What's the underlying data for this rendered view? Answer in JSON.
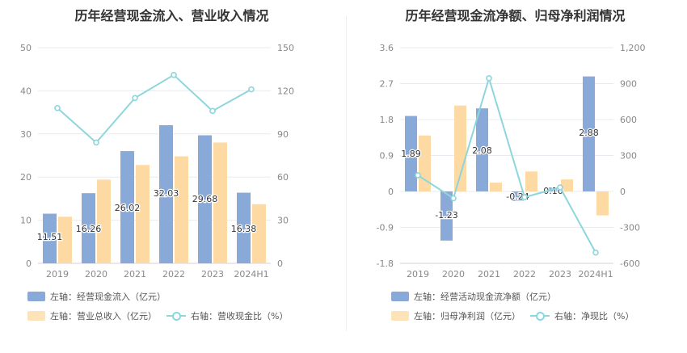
{
  "colors": {
    "blue": "#89a9d8",
    "orange": "#fdd9a3",
    "cyan": "#8dd6dc",
    "grid": "#e9ebf0",
    "axis_text": "#888888"
  },
  "chart_data": [
    {
      "type": "bar",
      "title": "历年经营现金流入、营业收入情况",
      "categories": [
        "2019",
        "2020",
        "2021",
        "2022",
        "2023",
        "2024H1"
      ],
      "left_axis": {
        "ticks": [
          "0",
          "10",
          "20",
          "30",
          "40",
          "50"
        ],
        "range": [
          0,
          50
        ]
      },
      "right_axis": {
        "ticks": [
          "0",
          "30",
          "60",
          "90",
          "120",
          "150"
        ],
        "range": [
          0,
          150
        ]
      },
      "series": [
        {
          "name": "左轴：经营现金流入（亿元）",
          "axis": "left",
          "kind": "bar",
          "values": [
            11.51,
            16.26,
            26.02,
            32.03,
            29.68,
            16.38
          ],
          "labels": [
            "11.51",
            "16.26",
            "26.02",
            "32.03",
            "29.68",
            "16.38"
          ]
        },
        {
          "name": "左轴：营业总收入（亿元）",
          "axis": "left",
          "kind": "bar",
          "values": [
            10.8,
            19.4,
            22.8,
            24.8,
            28.0,
            13.7
          ]
        },
        {
          "name": "右轴：营收现金比（%）",
          "axis": "right",
          "kind": "line",
          "values": [
            108,
            84,
            115,
            131,
            106,
            121
          ]
        }
      ]
    },
    {
      "type": "bar",
      "title": "历年经营现金流净额、归母净利润情况",
      "categories": [
        "2019",
        "2020",
        "2021",
        "2022",
        "2023",
        "2024H1"
      ],
      "left_axis": {
        "ticks": [
          "-1.8",
          "-0.9",
          "0",
          "0.9",
          "1.8",
          "2.7",
          "3.6"
        ],
        "range": [
          -1.8,
          3.6
        ]
      },
      "right_axis": {
        "ticks": [
          "-600",
          "-300",
          "0",
          "300",
          "600",
          "900",
          "1,200"
        ],
        "range": [
          -600,
          1200
        ]
      },
      "series": [
        {
          "name": "左轴：经营活动现金流净额（亿元）",
          "axis": "left",
          "kind": "bar",
          "values": [
            1.89,
            -1.23,
            2.08,
            -0.24,
            0.1,
            2.88
          ],
          "labels": [
            "1.89",
            "-1.23",
            "2.08",
            "-0.24",
            "0.10",
            "2.88"
          ]
        },
        {
          "name": "左轴：归母净利润（亿元）",
          "axis": "left",
          "kind": "bar",
          "values": [
            1.4,
            2.15,
            0.22,
            0.5,
            0.3,
            -0.6
          ]
        },
        {
          "name": "右轴：净现比（%）",
          "axis": "right",
          "kind": "line",
          "values": [
            135,
            -57,
            945,
            -48,
            33,
            -510
          ]
        }
      ]
    }
  ]
}
